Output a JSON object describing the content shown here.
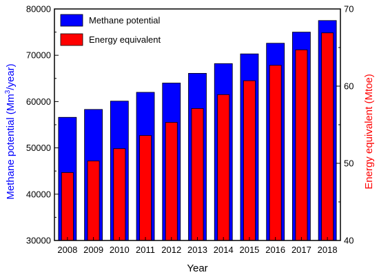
{
  "chart_data": {
    "type": "bar",
    "categories": [
      "2008",
      "2009",
      "2010",
      "2011",
      "2012",
      "2013",
      "2014",
      "2015",
      "2016",
      "2017",
      "2018"
    ],
    "xlabel": "Year",
    "ylabel_left": {
      "prefix": "Methane potential (Mm",
      "superscript": "3",
      "suffix": "/year)"
    },
    "ylabel_right": "Energy equivalent (Mtoe)",
    "ylim_left": [
      30000,
      80000
    ],
    "ylim_right": [
      40,
      70
    ],
    "yticks_left": [
      "30000",
      "40000",
      "50000",
      "60000",
      "70000",
      "80000"
    ],
    "yticks_right": [
      "40",
      "50",
      "60",
      "70"
    ],
    "grid": false,
    "legend_position": "top-left",
    "series": [
      {
        "name": "Methane potential",
        "axis": "left",
        "color": "#0000ff",
        "values": [
          56600,
          58300,
          60100,
          62000,
          64000,
          66100,
          68200,
          70300,
          72600,
          75000,
          77500
        ]
      },
      {
        "name": "Energy equivalent",
        "axis": "right",
        "color": "#ff0000",
        "values": [
          48.8,
          50.3,
          51.9,
          53.6,
          55.3,
          57.1,
          58.9,
          60.7,
          62.7,
          64.7,
          66.9
        ]
      }
    ],
    "colors": {
      "left_axis_title": "#0000ff",
      "right_axis_title": "#ff0000",
      "axis": "#000000"
    }
  }
}
